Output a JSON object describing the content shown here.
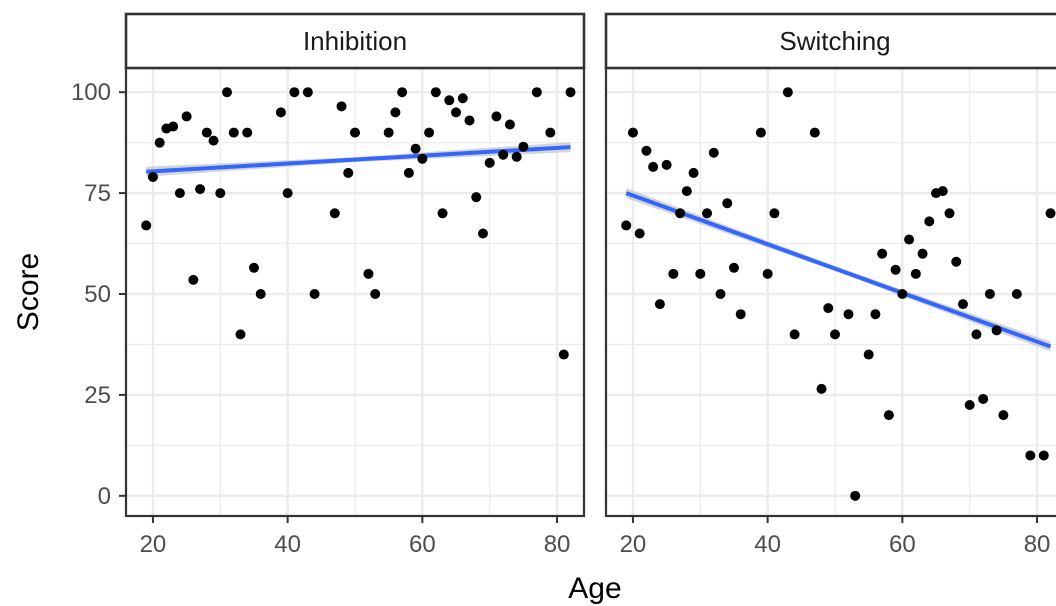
{
  "chart_data": {
    "type": "scatter",
    "xlabel": "Age",
    "ylabel": "Score",
    "xlim": [
      16,
      84
    ],
    "ylim": [
      -5,
      106
    ],
    "x_ticks": [
      20,
      40,
      60,
      80
    ],
    "y_ticks": [
      0,
      25,
      50,
      75,
      100
    ],
    "grid": true,
    "theme": "bw",
    "colors": {
      "points": "#000000",
      "fit_line": "#3366FF",
      "confidence_band": "#cccccc",
      "grid": "#ebebeb",
      "border": "#333333"
    },
    "panels": [
      {
        "title": "Inhibition",
        "points": [
          [
            19,
            67
          ],
          [
            20,
            79
          ],
          [
            21,
            87.5
          ],
          [
            22,
            91
          ],
          [
            23,
            91.5
          ],
          [
            24,
            75
          ],
          [
            25,
            94
          ],
          [
            26,
            53.5
          ],
          [
            27,
            76
          ],
          [
            28,
            90
          ],
          [
            29,
            88
          ],
          [
            30,
            75
          ],
          [
            31,
            100
          ],
          [
            32,
            90
          ],
          [
            34,
            90
          ],
          [
            33,
            40
          ],
          [
            35,
            56.5
          ],
          [
            36,
            50
          ],
          [
            39,
            95
          ],
          [
            40,
            75
          ],
          [
            41,
            100
          ],
          [
            43,
            100
          ],
          [
            44,
            50
          ],
          [
            47,
            70
          ],
          [
            48,
            96.5
          ],
          [
            49,
            80
          ],
          [
            50,
            90
          ],
          [
            52,
            55
          ],
          [
            53,
            50
          ],
          [
            55,
            90
          ],
          [
            56,
            95
          ],
          [
            57,
            100
          ],
          [
            58,
            80
          ],
          [
            59,
            86
          ],
          [
            60,
            83.5
          ],
          [
            61,
            90
          ],
          [
            62,
            100
          ],
          [
            63,
            70
          ],
          [
            64,
            98
          ],
          [
            65,
            95
          ],
          [
            66,
            98.5
          ],
          [
            67,
            93
          ],
          [
            68,
            74
          ],
          [
            69,
            65
          ],
          [
            70,
            82.5
          ],
          [
            71,
            94
          ],
          [
            72,
            84.5
          ],
          [
            73,
            92
          ],
          [
            74,
            84
          ],
          [
            75,
            86.5
          ],
          [
            77,
            100
          ],
          [
            79,
            90
          ],
          [
            81,
            35
          ],
          [
            82,
            100
          ]
        ],
        "fit": {
          "x": [
            19,
            82
          ],
          "y": [
            80.3,
            86.4
          ]
        }
      },
      {
        "title": "Switching",
        "points": [
          [
            19,
            67
          ],
          [
            20,
            90
          ],
          [
            21,
            65
          ],
          [
            22,
            85.5
          ],
          [
            23,
            81.5
          ],
          [
            24,
            47.5
          ],
          [
            25,
            82
          ],
          [
            26,
            55
          ],
          [
            27,
            70
          ],
          [
            28,
            75.5
          ],
          [
            29,
            80
          ],
          [
            30,
            55
          ],
          [
            31,
            70
          ],
          [
            32,
            85
          ],
          [
            33,
            50
          ],
          [
            34,
            72.5
          ],
          [
            35,
            56.5
          ],
          [
            36,
            45
          ],
          [
            39,
            90
          ],
          [
            40,
            55
          ],
          [
            41,
            70
          ],
          [
            43,
            100
          ],
          [
            44,
            40
          ],
          [
            47,
            90
          ],
          [
            48,
            26.5
          ],
          [
            49,
            46.5
          ],
          [
            50,
            40
          ],
          [
            52,
            45
          ],
          [
            53,
            0
          ],
          [
            55,
            35
          ],
          [
            56,
            45
          ],
          [
            57,
            60
          ],
          [
            58,
            20
          ],
          [
            59,
            56
          ],
          [
            60,
            50
          ],
          [
            61,
            63.5
          ],
          [
            62,
            55
          ],
          [
            63,
            60
          ],
          [
            64,
            68
          ],
          [
            65,
            75
          ],
          [
            66,
            75.5
          ],
          [
            67,
            70
          ],
          [
            68,
            58
          ],
          [
            69,
            47.5
          ],
          [
            70,
            22.5
          ],
          [
            71,
            40
          ],
          [
            72,
            24
          ],
          [
            73,
            50
          ],
          [
            74,
            41
          ],
          [
            75,
            20
          ],
          [
            77,
            50
          ],
          [
            79,
            10
          ],
          [
            81,
            10
          ],
          [
            82,
            70
          ]
        ],
        "fit": {
          "x": [
            19,
            82
          ],
          "y": [
            75,
            37
          ]
        }
      }
    ]
  }
}
